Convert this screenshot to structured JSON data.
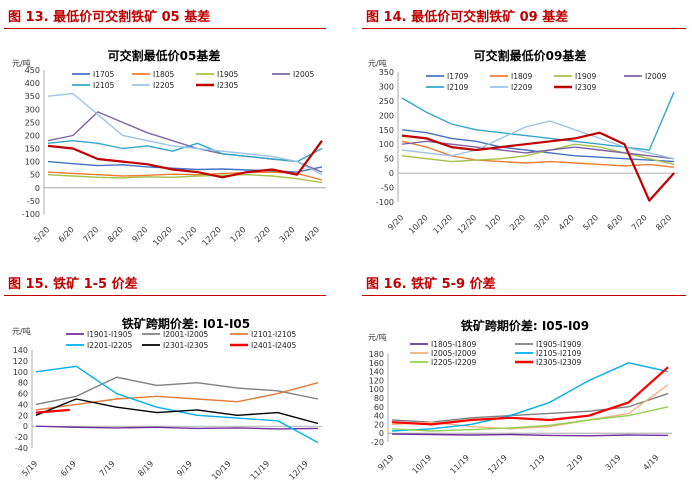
{
  "figures": [
    {
      "label": "图 13. 最低价可交割铁矿 05 基差"
    },
    {
      "label": "图 14. 最低价可交割铁矿 09 基差"
    },
    {
      "label": "图 15. 铁矿 1-5 价差"
    },
    {
      "label": "图 16. 铁矿 5-9 价差"
    }
  ],
  "chart_data": [
    {
      "type": "line",
      "title": "可交割最低价05基差",
      "ylabel": "元/吨",
      "ylim": [
        -100,
        450
      ],
      "yticks": [
        -100,
        -50,
        0,
        50,
        100,
        150,
        200,
        250,
        300,
        350,
        400,
        450
      ],
      "x_ticklabels": [
        "5/20",
        "6/20",
        "7/20",
        "8/20",
        "9/20",
        "10/20",
        "11/20",
        "12/20",
        "1/20",
        "2/20",
        "3/20",
        "4/20"
      ],
      "series": [
        {
          "name": "I1705",
          "color": "#4472c4",
          "values": [
            100,
            92,
            85,
            88,
            80,
            75,
            70,
            72,
            68,
            65,
            60,
            80
          ]
        },
        {
          "name": "I1805",
          "color": "#ed7d31",
          "values": [
            60,
            55,
            50,
            45,
            48,
            52,
            50,
            55,
            58,
            60,
            55,
            30
          ]
        },
        {
          "name": "I1905",
          "color": "#a5c249",
          "values": [
            50,
            45,
            40,
            38,
            42,
            40,
            45,
            48,
            50,
            45,
            35,
            20
          ]
        },
        {
          "name": "I2005",
          "color": "#8064a2",
          "values": [
            180,
            200,
            290,
            250,
            210,
            180,
            150,
            130,
            120,
            110,
            100,
            60
          ]
        },
        {
          "name": "I2105",
          "color": "#31a8c8",
          "values": [
            170,
            180,
            170,
            150,
            160,
            140,
            170,
            130,
            120,
            110,
            100,
            150
          ]
        },
        {
          "name": "I2205",
          "color": "#9dc3e6",
          "values": [
            350,
            360,
            280,
            200,
            180,
            160,
            150,
            140,
            130,
            120,
            100,
            50
          ]
        },
        {
          "name": "I2305",
          "color": "#c00000",
          "values": [
            160,
            150,
            110,
            100,
            90,
            70,
            60,
            40,
            60,
            70,
            50,
            180
          ]
        }
      ]
    },
    {
      "type": "line",
      "title": "可交割最低价09基差",
      "ylabel": "元/吨",
      "ylim": [
        -100,
        350
      ],
      "yticks": [
        -100,
        -50,
        0,
        50,
        100,
        150,
        200,
        250,
        300,
        350
      ],
      "x_ticklabels": [
        "9/20",
        "10/20",
        "11/20",
        "12/20",
        "1/20",
        "2/20",
        "3/20",
        "4/20",
        "5/20",
        "6/20",
        "7/20",
        "8/20"
      ],
      "series": [
        {
          "name": "I1709",
          "color": "#4472c4",
          "values": [
            150,
            140,
            120,
            110,
            90,
            80,
            70,
            60,
            55,
            50,
            45,
            40
          ]
        },
        {
          "name": "I1809",
          "color": "#ed7d31",
          "values": [
            110,
            90,
            60,
            45,
            40,
            35,
            40,
            35,
            30,
            25,
            30,
            20
          ]
        },
        {
          "name": "I1909",
          "color": "#a5c249",
          "values": [
            60,
            50,
            40,
            45,
            50,
            60,
            80,
            100,
            90,
            70,
            50,
            30
          ]
        },
        {
          "name": "I2009",
          "color": "#8064a2",
          "values": [
            100,
            110,
            100,
            90,
            80,
            70,
            80,
            90,
            80,
            70,
            60,
            50
          ]
        },
        {
          "name": "I2109",
          "color": "#31a8c8",
          "values": [
            260,
            210,
            170,
            150,
            140,
            130,
            120,
            110,
            100,
            90,
            80,
            280
          ]
        },
        {
          "name": "I2209",
          "color": "#9dc3e6",
          "values": [
            80,
            70,
            60,
            80,
            120,
            160,
            180,
            150,
            120,
            90,
            70,
            50
          ]
        },
        {
          "name": "I2309",
          "color": "#c00000",
          "values": [
            130,
            120,
            90,
            80,
            90,
            100,
            110,
            120,
            140,
            100,
            -95,
            0
          ]
        }
      ]
    },
    {
      "type": "line",
      "title": "铁矿跨期价差: I01-I05",
      "ylabel": "元/吨",
      "ylim": [
        -40,
        140
      ],
      "yticks": [
        -40,
        -20,
        0,
        20,
        40,
        60,
        80,
        100,
        120,
        140
      ],
      "x_ticklabels": [
        "5/19",
        "6/19",
        "7/19",
        "8/19",
        "9/19",
        "10/19",
        "11/19",
        "12/19"
      ],
      "series": [
        {
          "name": "I1901-I1905",
          "color": "#7030a0",
          "values": [
            0,
            -2,
            -3,
            -2,
            -4,
            -3,
            -5,
            -4
          ]
        },
        {
          "name": "I2001-I2005",
          "color": "#808080",
          "values": [
            40,
            55,
            90,
            75,
            80,
            70,
            65,
            50
          ]
        },
        {
          "name": "I2101-I2105",
          "color": "#e07b39",
          "values": [
            30,
            40,
            50,
            55,
            50,
            45,
            60,
            80
          ]
        },
        {
          "name": "I2201-I2205",
          "color": "#00b0f0",
          "values": [
            100,
            110,
            60,
            35,
            20,
            15,
            10,
            -30
          ]
        },
        {
          "name": "I2301-I2305",
          "color": "#000000",
          "values": [
            20,
            50,
            35,
            25,
            30,
            20,
            25,
            5
          ]
        },
        {
          "name": "I2401-I2405",
          "color": "#ff0000",
          "values": [
            25,
            30
          ]
        }
      ]
    },
    {
      "type": "line",
      "title": "铁矿跨期价差: I05-I09",
      "ylabel": "元/吨",
      "ylim": [
        -20,
        180
      ],
      "yticks": [
        -20,
        0,
        20,
        40,
        60,
        80,
        100,
        120,
        140,
        160,
        180
      ],
      "x_ticklabels": [
        "9/19",
        "10/19",
        "11/19",
        "12/19",
        "1/19",
        "2/19",
        "3/19",
        "4/19"
      ],
      "series": [
        {
          "name": "I1805-I1809",
          "color": "#7030a0",
          "values": [
            -2,
            -3,
            -4,
            -3,
            -5,
            -6,
            -4,
            -5
          ]
        },
        {
          "name": "I1905-I1909",
          "color": "#7f7f7f",
          "values": [
            30,
            25,
            35,
            40,
            45,
            50,
            60,
            90
          ]
        },
        {
          "name": "I2005-I2009",
          "color": "#f4b183",
          "values": [
            20,
            25,
            15,
            10,
            15,
            30,
            45,
            110
          ]
        },
        {
          "name": "I2105-I2109",
          "color": "#00b0f0",
          "values": [
            5,
            10,
            20,
            40,
            70,
            120,
            160,
            140
          ]
        },
        {
          "name": "I2205-I2209",
          "color": "#92d050",
          "values": [
            10,
            5,
            8,
            12,
            18,
            30,
            40,
            60
          ]
        },
        {
          "name": "I2305-I2309",
          "color": "#ff0000",
          "values": [
            25,
            20,
            30,
            35,
            30,
            40,
            70,
            150
          ]
        }
      ]
    }
  ]
}
